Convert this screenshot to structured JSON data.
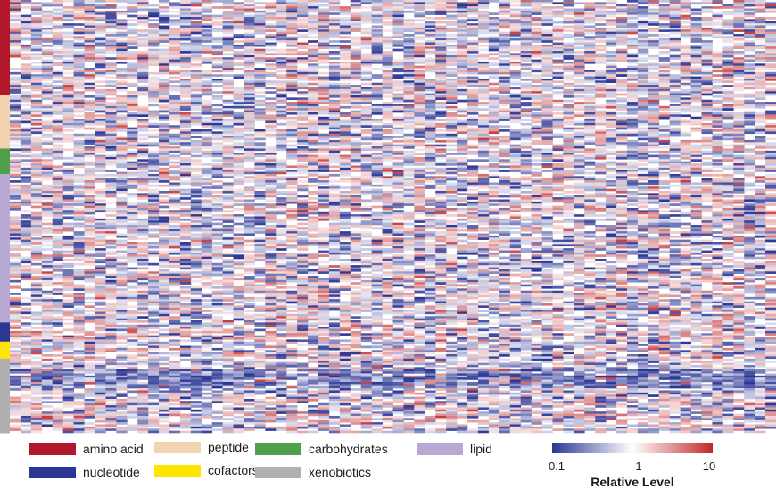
{
  "chart_data": {
    "type": "heatmap",
    "title": "",
    "n_columns": 72,
    "row_groups": [
      {
        "name": "amino acid",
        "rows": 45,
        "color": "#b2182b"
      },
      {
        "name": "peptide",
        "rows": 25,
        "color": "#f2d3b0"
      },
      {
        "name": "carbohydrates",
        "rows": 12,
        "color": "#4fa04a"
      },
      {
        "name": "lipid",
        "rows": 70,
        "color": "#b7a9d3"
      },
      {
        "name": "nucleotide",
        "rows": 9,
        "color": "#2b3695"
      },
      {
        "name": "cofactors",
        "rows": 8,
        "color": "#ffe600"
      },
      {
        "name": "xenobiotics",
        "rows": 35,
        "color": "#b0b0b0"
      }
    ],
    "colorbar": {
      "title": "Relative Level",
      "scale": "log",
      "range": [
        0.1,
        10
      ],
      "ticks": [
        "0.1",
        "1",
        "10"
      ],
      "colors": [
        "#2b3695",
        "#ffffff",
        "#c0282a"
      ]
    }
  },
  "legend": {
    "items": [
      {
        "label": "amino acid",
        "color": "#b2182b"
      },
      {
        "label": "peptide",
        "color": "#f2d3b0"
      },
      {
        "label": "carbohydrates",
        "color": "#4fa04a"
      },
      {
        "label": "lipid",
        "color": "#b7a9d3"
      },
      {
        "label": "nucleotide",
        "color": "#2b3695"
      },
      {
        "label": "cofactors",
        "color": "#ffe600"
      },
      {
        "label": "xenobiotics",
        "color": "#b0b0b0"
      }
    ]
  }
}
